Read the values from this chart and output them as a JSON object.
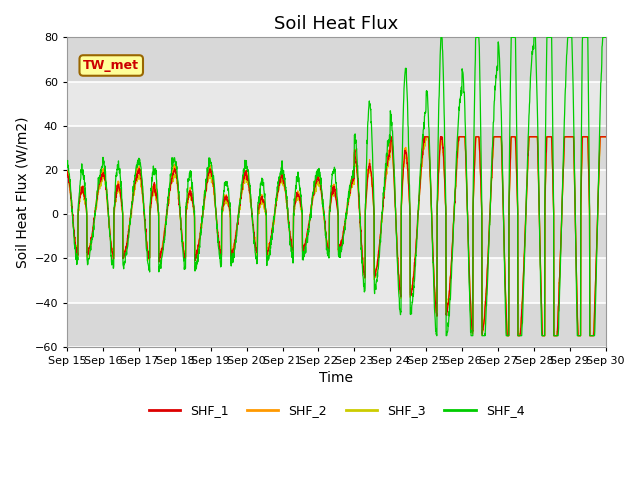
{
  "title": "Soil Heat Flux",
  "xlabel": "Time",
  "ylabel": "Soil Heat Flux (W/m2)",
  "ylim": [
    -60,
    80
  ],
  "x_tick_labels": [
    "Sep 15",
    "Sep 16",
    "Sep 17",
    "Sep 18",
    "Sep 19",
    "Sep 20",
    "Sep 21",
    "Sep 22",
    "Sep 23",
    "Sep 24",
    "Sep 25",
    "Sep 26",
    "Sep 27",
    "Sep 28",
    "Sep 29",
    "Sep 30"
  ],
  "annotation_text": "TW_met",
  "annotation_color": "#cc0000",
  "annotation_bg": "#ffff99",
  "annotation_border": "#996600",
  "colors": {
    "SHF_1": "#dd0000",
    "SHF_2": "#ff9900",
    "SHF_3": "#cccc00",
    "SHF_4": "#00cc00"
  },
  "legend_labels": [
    "SHF_1",
    "SHF_2",
    "SHF_3",
    "SHF_4"
  ],
  "plot_bg": "#e8e8e8",
  "grid_color": "white",
  "band_color1": "#e0e0e0",
  "band_color2": "#d0d0d0",
  "title_fontsize": 13,
  "label_fontsize": 10,
  "tick_fontsize": 8
}
